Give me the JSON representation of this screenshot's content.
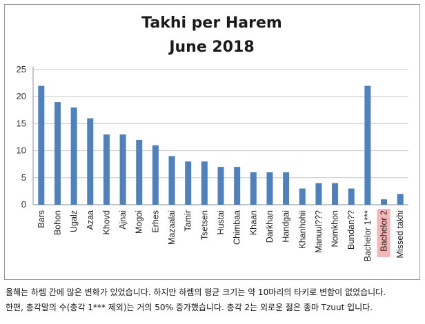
{
  "chart_data": {
    "type": "bar",
    "title": "Takhi per Harem",
    "subtitle": "June 2018",
    "xlabel": "",
    "ylabel": "",
    "ylim": [
      0,
      25
    ],
    "yticks": [
      0,
      5,
      10,
      15,
      20,
      25
    ],
    "grid": true,
    "bar_color": "#4f81bd",
    "highlight_color": "#f4b6b6",
    "highlighted_category": "Bachelor 2",
    "categories": [
      "Bars",
      "Bohon",
      "Ugalz",
      "Azaa",
      "Khovd",
      "Ajnai",
      "Mogoi",
      "Erhes",
      "Mazaalai",
      "Tamir",
      "Tsetsen",
      "Hustai",
      "Chimbaa",
      "Khaan",
      "Darkhan",
      "Handgai",
      "Khanhohii",
      "Manuul???",
      "Nomkhon",
      "Bundan??",
      "Bachelor 1***",
      "Bachelor 2",
      "Missed takhi"
    ],
    "values": [
      22,
      19,
      18,
      16,
      13,
      13,
      12,
      11,
      9,
      8,
      8,
      7,
      7,
      6,
      6,
      6,
      3,
      4,
      4,
      3,
      22,
      1,
      2
    ]
  },
  "caption": {
    "line1": "올해는 하렘 간에 많은 변화가 있었습니다. 하지만 하렘의 평균 크기는 약 10마리의 타키로 변함이 없었습니다.",
    "line2": "한편, 총각말의 수(총각 1*** 제외)는 거의 50% 증가했습니다. 총각 2는 외로운 젊은 종마 Tzuut 입니다."
  }
}
